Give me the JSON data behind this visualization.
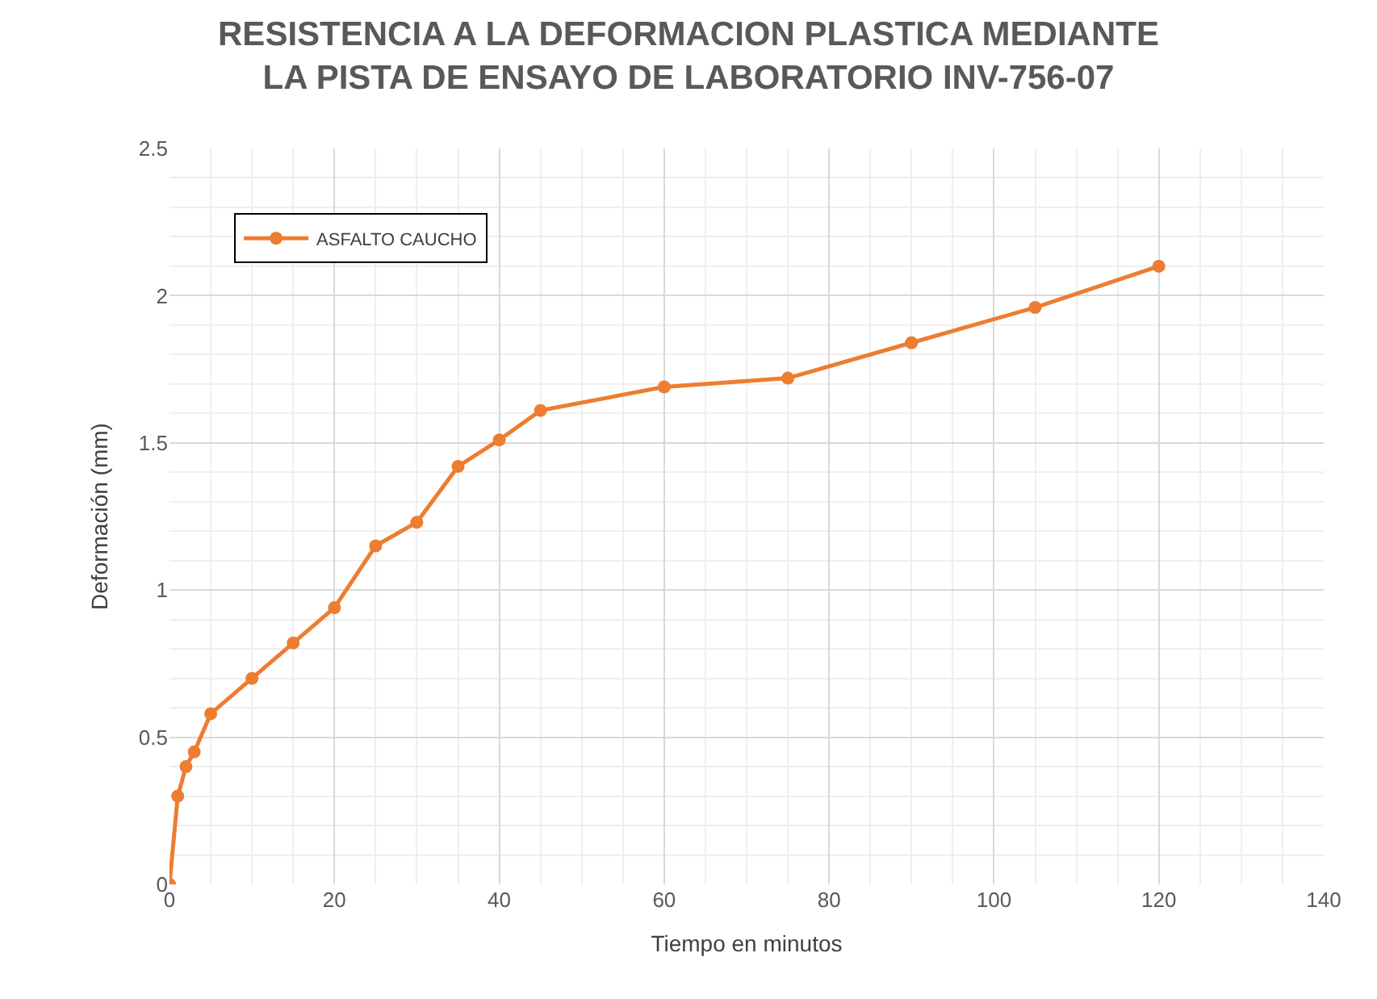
{
  "chart_data": {
    "type": "line",
    "title": "RESISTENCIA A LA DEFORMACION PLASTICA MEDIANTE\nLA PISTA DE ENSAYO DE LABORATORIO INV-756-07",
    "xlabel": "Tiempo en minutos",
    "ylabel": "Deformación (mm)",
    "x": [
      0,
      1,
      2,
      3,
      5,
      10,
      15,
      20,
      25,
      30,
      35,
      40,
      45,
      60,
      75,
      90,
      105,
      120
    ],
    "series": [
      {
        "name": "ASFALTO CAUCHO",
        "color": "#ed7d31",
        "values": [
          0,
          0.3,
          0.4,
          0.45,
          0.58,
          0.7,
          0.82,
          0.94,
          1.15,
          1.23,
          1.42,
          1.51,
          1.61,
          1.69,
          1.72,
          1.84,
          1.96,
          2.1
        ]
      }
    ],
    "xlim": [
      0,
      140
    ],
    "xticks": [
      0,
      20,
      40,
      60,
      80,
      100,
      120,
      140
    ],
    "ylim": [
      0,
      2.5
    ],
    "yticks": [
      0,
      0.5,
      1,
      1.5,
      2,
      2.5
    ],
    "grid": true,
    "legend": "top left",
    "marker": "circle",
    "line_style": "solid"
  }
}
